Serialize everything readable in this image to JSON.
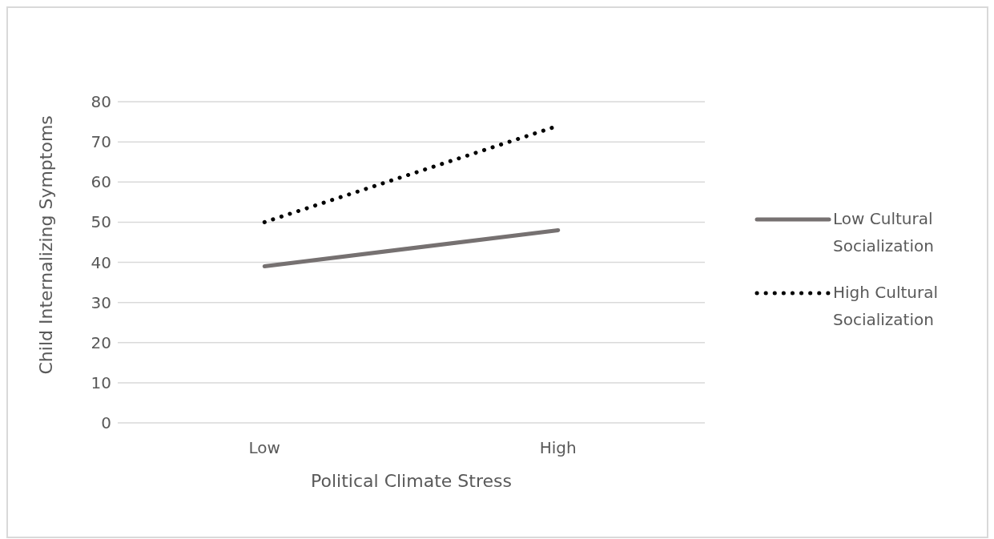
{
  "chart_data": {
    "type": "line",
    "xlabel": "Political Climate Stress",
    "ylabel": "Child Internalizing Symptoms",
    "categories": [
      "Low",
      "High"
    ],
    "series": [
      {
        "name": "Low Cultural Socialization",
        "color": "#767171",
        "values": [
          39,
          48
        ],
        "line_style": "solid"
      },
      {
        "name": "High Cultural Socialization",
        "color": "#000000",
        "values": [
          50,
          74
        ],
        "line_style": "dotted"
      }
    ],
    "ylim": [
      0,
      80
    ],
    "yticks": [
      0,
      10,
      20,
      30,
      40,
      50,
      60,
      70,
      80
    ],
    "grid": "y",
    "legend": "right",
    "marker": "none"
  }
}
